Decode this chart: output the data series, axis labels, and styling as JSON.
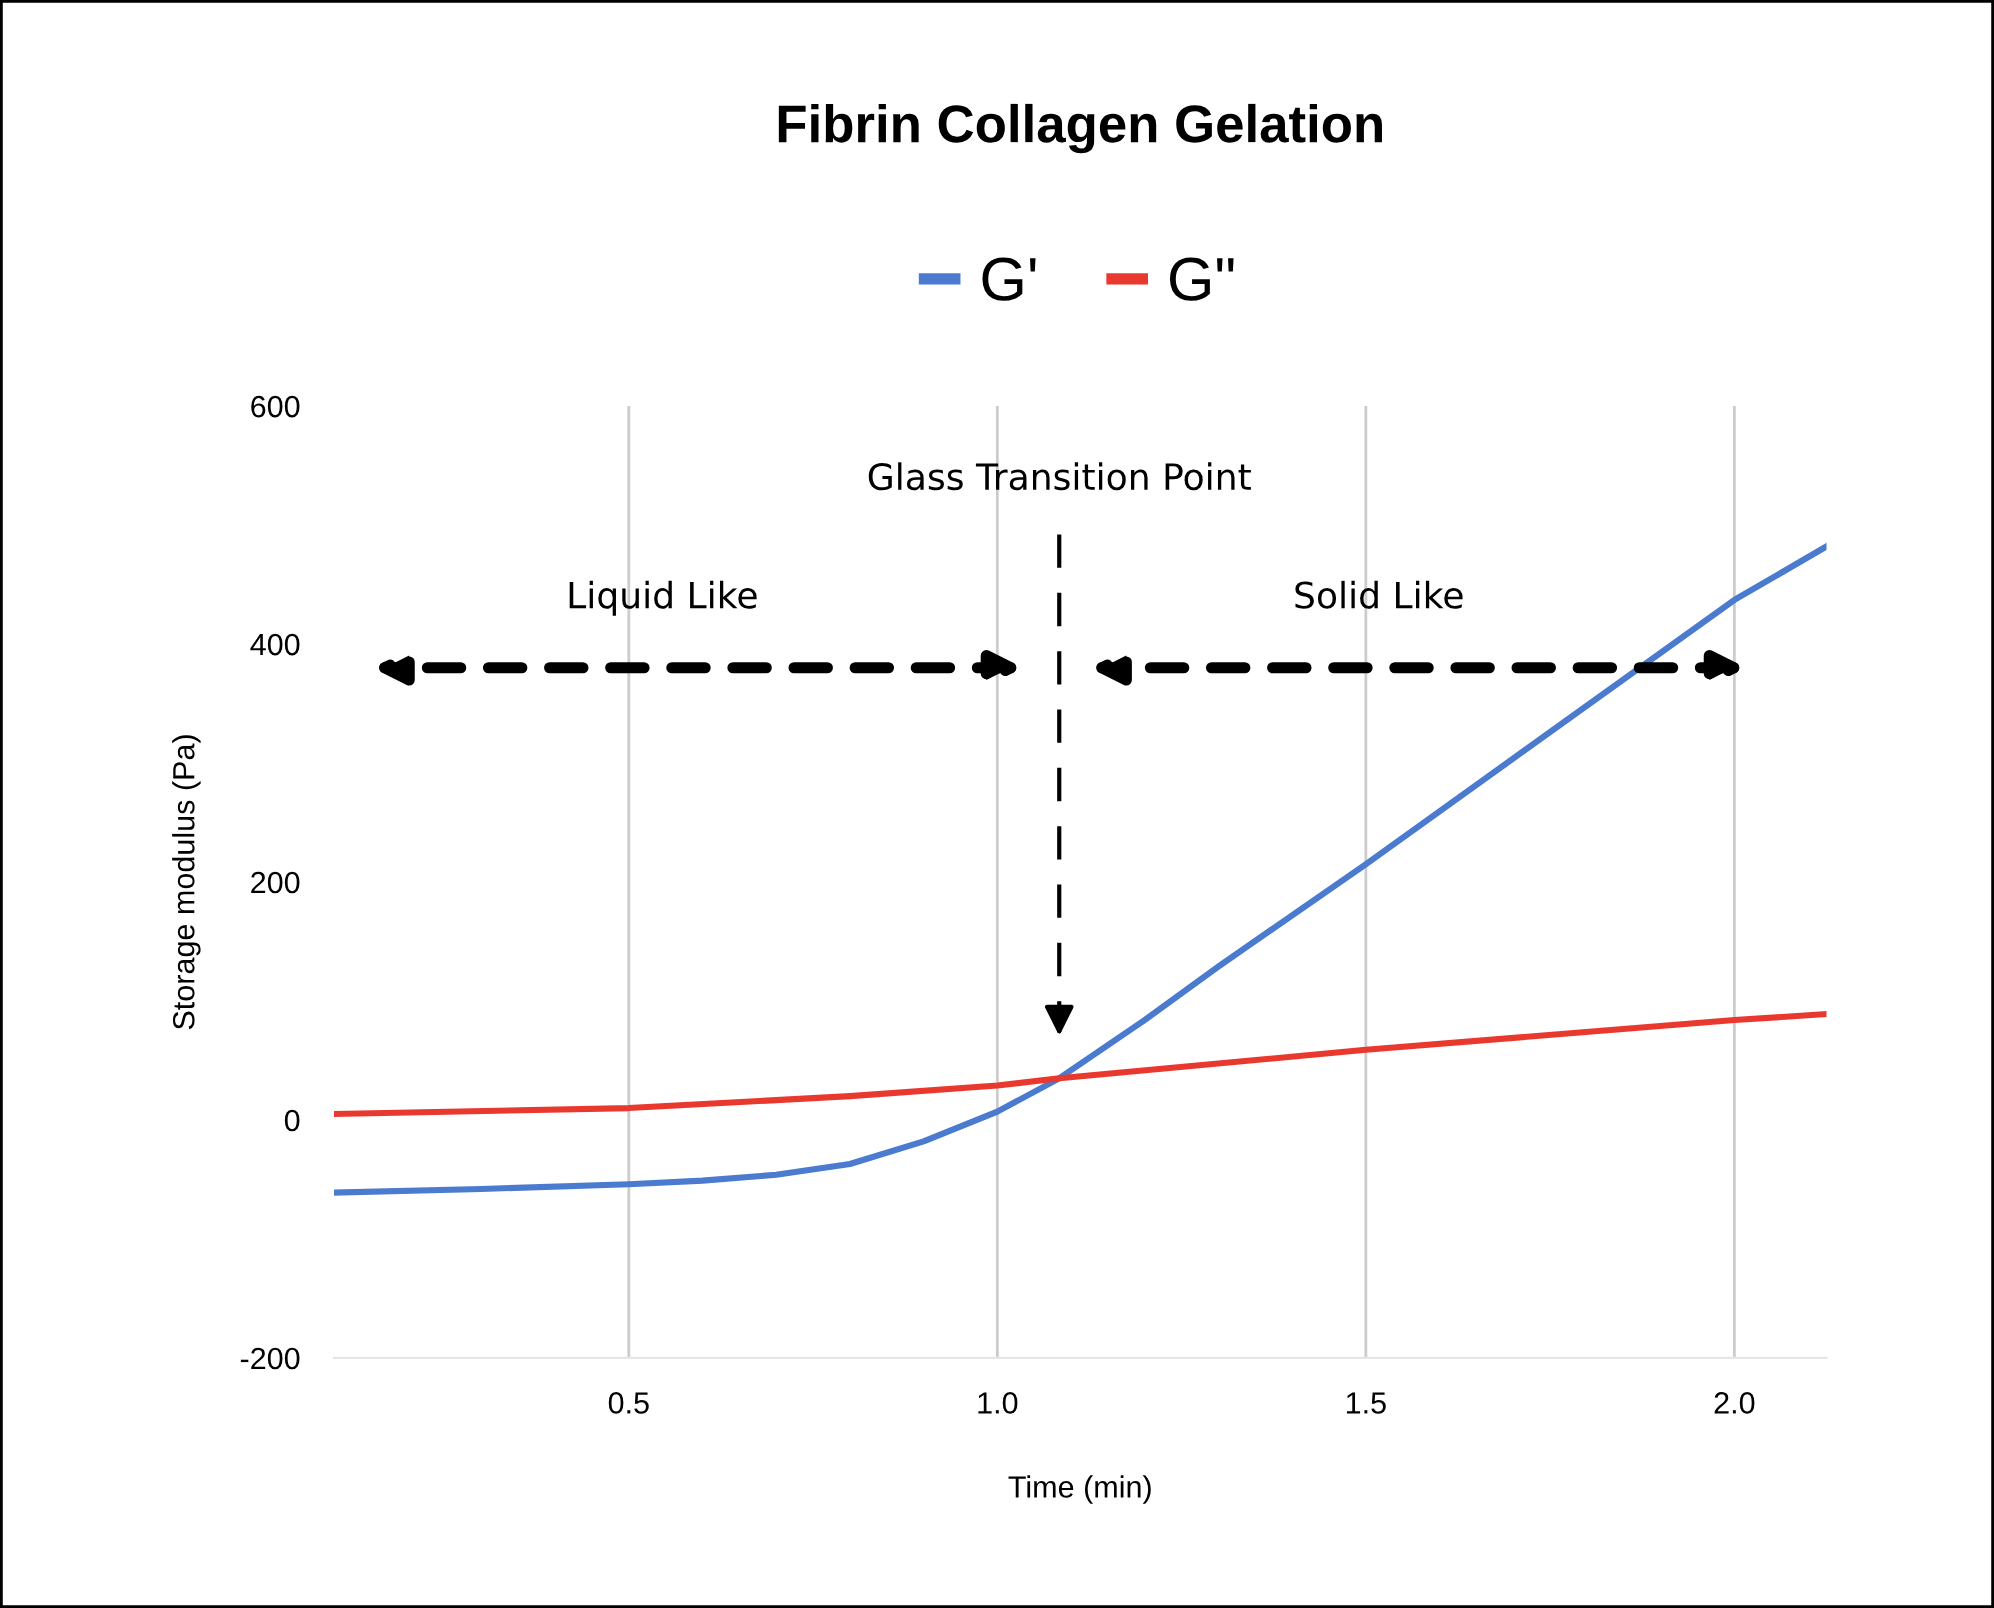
{
  "chart_data": {
    "type": "line",
    "title": "Fibrin Collagen Gelation",
    "xlabel": "Time (min)",
    "ylabel": "Storage modulus (Pa)",
    "series": [
      {
        "name": "G'",
        "color": "#4a7bcf",
        "x": [
          0.1,
          0.3,
          0.5,
          0.6,
          0.7,
          0.8,
          0.9,
          1.0,
          1.084,
          1.2,
          1.3,
          1.5,
          1.75,
          2.0,
          2.125
        ],
        "values": [
          -61,
          -58,
          -54,
          -51,
          -46,
          -37,
          -18,
          7,
          35,
          84,
          129,
          215,
          326,
          437,
          482
        ]
      },
      {
        "name": "G\"",
        "color": "#e9392f",
        "x": [
          0.1,
          0.5,
          0.8,
          1.0,
          1.084,
          1.5,
          2.0,
          2.125
        ],
        "values": [
          5,
          10,
          20,
          29,
          35,
          59,
          84,
          89
        ]
      }
    ],
    "xlim": [
      0.1,
      2.125
    ],
    "xticks": [
      0.5,
      {
        "value": 1,
        "label": "1.0"
      },
      1.5,
      {
        "value": 2,
        "label": "2.0"
      }
    ],
    "ylim": [
      -200,
      600
    ],
    "yticks": [
      -200,
      0,
      200,
      400,
      600
    ],
    "grid": "x",
    "legend": "top",
    "line_style": "solid",
    "ref_lines": [
      {
        "axis": "x",
        "value": 1.084,
        "label": "Glass Transition Point",
        "color": "#000000",
        "line_style": "dashed"
      }
    ],
    "annotations": [
      "Liquid Like",
      "Solid Like"
    ]
  }
}
